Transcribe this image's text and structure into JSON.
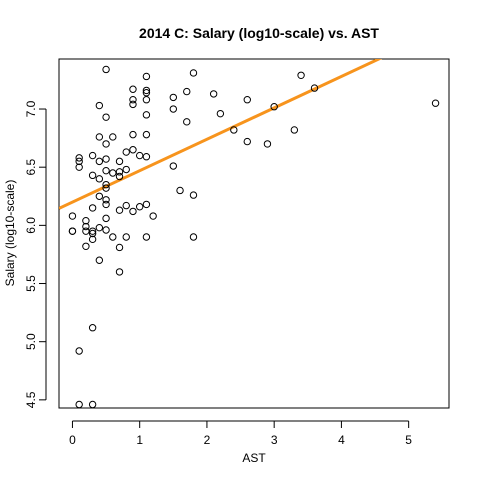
{
  "chart_data": {
    "type": "scatter",
    "title": "2014 C: Salary (log10-scale) vs. AST",
    "xlabel": "AST",
    "ylabel": "Salary (log10-scale)",
    "xlim": [
      -0.2,
      5.6
    ],
    "ylim": [
      4.43,
      7.43
    ],
    "xticks": [
      0,
      1,
      2,
      3,
      4,
      5
    ],
    "yticks": [
      4.5,
      5.0,
      5.5,
      6.0,
      6.5,
      7.0
    ],
    "ytick_labels": [
      "4.5",
      "5.0",
      "5.5",
      "6.0",
      "6.5",
      "7.0"
    ],
    "grid": false,
    "point_color": "#000000",
    "fit_line": {
      "intercept": 6.2,
      "slope": 0.27,
      "color": "#f7941d"
    },
    "points": [
      {
        "x": 0.0,
        "y": 6.08
      },
      {
        "x": 0.0,
        "y": 5.95
      },
      {
        "x": 0.0,
        "y": 5.95
      },
      {
        "x": 0.1,
        "y": 6.58
      },
      {
        "x": 0.1,
        "y": 6.55
      },
      {
        "x": 0.1,
        "y": 6.5
      },
      {
        "x": 0.1,
        "y": 4.92
      },
      {
        "x": 0.1,
        "y": 4.46
      },
      {
        "x": 0.2,
        "y": 6.04
      },
      {
        "x": 0.2,
        "y": 5.99
      },
      {
        "x": 0.2,
        "y": 5.95
      },
      {
        "x": 0.2,
        "y": 5.82
      },
      {
        "x": 0.3,
        "y": 6.6
      },
      {
        "x": 0.3,
        "y": 6.43
      },
      {
        "x": 0.3,
        "y": 6.15
      },
      {
        "x": 0.3,
        "y": 5.95
      },
      {
        "x": 0.3,
        "y": 5.93
      },
      {
        "x": 0.3,
        "y": 5.88
      },
      {
        "x": 0.3,
        "y": 5.12
      },
      {
        "x": 0.3,
        "y": 4.46
      },
      {
        "x": 0.4,
        "y": 7.03
      },
      {
        "x": 0.4,
        "y": 6.76
      },
      {
        "x": 0.4,
        "y": 6.55
      },
      {
        "x": 0.4,
        "y": 6.4
      },
      {
        "x": 0.4,
        "y": 6.25
      },
      {
        "x": 0.4,
        "y": 5.98
      },
      {
        "x": 0.4,
        "y": 5.7
      },
      {
        "x": 0.5,
        "y": 7.34
      },
      {
        "x": 0.5,
        "y": 6.93
      },
      {
        "x": 0.5,
        "y": 6.7
      },
      {
        "x": 0.5,
        "y": 6.57
      },
      {
        "x": 0.5,
        "y": 6.47
      },
      {
        "x": 0.5,
        "y": 6.35
      },
      {
        "x": 0.5,
        "y": 6.32
      },
      {
        "x": 0.5,
        "y": 6.22
      },
      {
        "x": 0.5,
        "y": 6.18
      },
      {
        "x": 0.5,
        "y": 6.06
      },
      {
        "x": 0.5,
        "y": 5.96
      },
      {
        "x": 0.6,
        "y": 6.76
      },
      {
        "x": 0.6,
        "y": 6.45
      },
      {
        "x": 0.6,
        "y": 5.9
      },
      {
        "x": 0.7,
        "y": 6.55
      },
      {
        "x": 0.7,
        "y": 6.46
      },
      {
        "x": 0.7,
        "y": 6.42
      },
      {
        "x": 0.7,
        "y": 6.13
      },
      {
        "x": 0.7,
        "y": 5.81
      },
      {
        "x": 0.7,
        "y": 5.6
      },
      {
        "x": 0.8,
        "y": 6.63
      },
      {
        "x": 0.8,
        "y": 6.48
      },
      {
        "x": 0.8,
        "y": 6.17
      },
      {
        "x": 0.8,
        "y": 5.9
      },
      {
        "x": 0.9,
        "y": 7.17
      },
      {
        "x": 0.9,
        "y": 7.08
      },
      {
        "x": 0.9,
        "y": 7.04
      },
      {
        "x": 0.9,
        "y": 6.78
      },
      {
        "x": 0.9,
        "y": 6.65
      },
      {
        "x": 0.9,
        "y": 6.12
      },
      {
        "x": 1.0,
        "y": 6.6
      },
      {
        "x": 1.0,
        "y": 6.16
      },
      {
        "x": 1.1,
        "y": 7.28
      },
      {
        "x": 1.1,
        "y": 7.16
      },
      {
        "x": 1.1,
        "y": 7.14
      },
      {
        "x": 1.1,
        "y": 7.08
      },
      {
        "x": 1.1,
        "y": 6.95
      },
      {
        "x": 1.1,
        "y": 6.78
      },
      {
        "x": 1.1,
        "y": 6.59
      },
      {
        "x": 1.1,
        "y": 6.18
      },
      {
        "x": 1.1,
        "y": 5.9
      },
      {
        "x": 1.2,
        "y": 6.08
      },
      {
        "x": 1.5,
        "y": 7.1
      },
      {
        "x": 1.5,
        "y": 7.0
      },
      {
        "x": 1.5,
        "y": 6.51
      },
      {
        "x": 1.6,
        "y": 6.3
      },
      {
        "x": 1.7,
        "y": 7.15
      },
      {
        "x": 1.7,
        "y": 6.89
      },
      {
        "x": 1.8,
        "y": 7.31
      },
      {
        "x": 1.8,
        "y": 6.26
      },
      {
        "x": 1.8,
        "y": 5.9
      },
      {
        "x": 2.1,
        "y": 7.13
      },
      {
        "x": 2.2,
        "y": 6.96
      },
      {
        "x": 2.4,
        "y": 6.82
      },
      {
        "x": 2.6,
        "y": 7.08
      },
      {
        "x": 2.6,
        "y": 6.72
      },
      {
        "x": 2.9,
        "y": 6.7
      },
      {
        "x": 3.0,
        "y": 7.02
      },
      {
        "x": 3.3,
        "y": 6.82
      },
      {
        "x": 3.4,
        "y": 7.29
      },
      {
        "x": 3.6,
        "y": 7.18
      },
      {
        "x": 5.4,
        "y": 7.05
      }
    ]
  }
}
